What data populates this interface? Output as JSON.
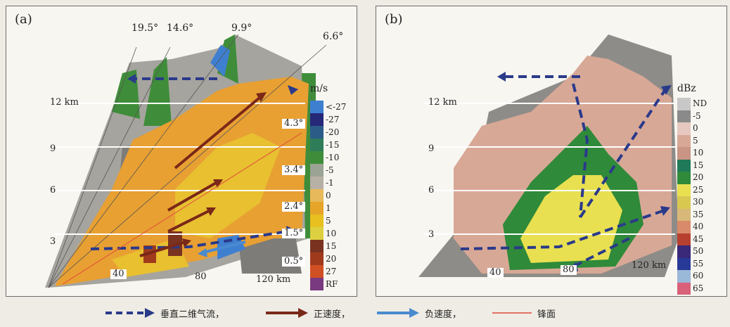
{
  "panel_a": {
    "label": "(a)",
    "angles": [
      "19.5°",
      "14.6°",
      "9.9°",
      "6.6°",
      "4.3°",
      "3.4°",
      "2.4°",
      "1.5°",
      "0.5°"
    ],
    "heights": [
      "12 km",
      "9",
      "6",
      "3"
    ],
    "distances": [
      "40",
      "80",
      "120 km"
    ],
    "colorbar": {
      "unit": "m/s",
      "labels": [
        "<-27",
        "-27",
        "-20",
        "-15",
        "-10",
        "-5",
        "-1",
        "0",
        "1",
        "5",
        "10",
        "15",
        "20",
        "27",
        "RF"
      ],
      "colors": [
        "#3f7fd0",
        "#262878",
        "#2a5c87",
        "#2f7d58",
        "#3f8d3a",
        "#9aa394",
        "#b7b0a4",
        "#e8b95a",
        "#e6a528",
        "#e8c020",
        "#dcd040",
        "#7a3220",
        "#a03a1c",
        "#d05024",
        "#7a3a80"
      ]
    }
  },
  "panel_b": {
    "label": "(b)",
    "heights": [
      "12 km",
      "9",
      "6",
      "3"
    ],
    "distances": [
      "40",
      "80",
      "120 km"
    ],
    "colorbar": {
      "unit": "dBz",
      "labels": [
        "ND",
        "-5",
        "0",
        "5",
        "10",
        "15",
        "20",
        "25",
        "30",
        "35",
        "40",
        "45",
        "50",
        "55",
        "60",
        "65"
      ],
      "colors": [
        "#c8c8c8",
        "#8a8a8a",
        "#e6c8c0",
        "#d8a896",
        "#c99484",
        "#1f7a5a",
        "#2f8a3a",
        "#e8e050",
        "#d8c850",
        "#d8b878",
        "#d88a6a",
        "#b84030",
        "#3a2878",
        "#283a98",
        "#9ab8d8",
        "#d86078"
      ]
    }
  },
  "legend": {
    "items": [
      {
        "label": "垂直二维气流，",
        "color": "#2a3a8a"
      },
      {
        "label": "正速度，",
        "color": "#7a2818"
      },
      {
        "label": "负速度，",
        "color": "#4a8ad0"
      },
      {
        "label": "锋面",
        "color": "#e04a3a"
      }
    ]
  }
}
